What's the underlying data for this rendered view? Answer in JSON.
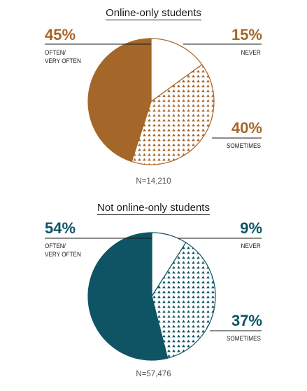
{
  "colors": {
    "top": "#a5662a",
    "bottom": "#0e5465",
    "text": "#1a1a1a",
    "n": "#555555"
  },
  "chart_data": [
    {
      "type": "pie",
      "title": "Online-only students",
      "slices": [
        {
          "label": "NEVER",
          "value": 15,
          "display": "15%",
          "fill": "white"
        },
        {
          "label": "SOMETIMES",
          "value": 40,
          "display": "40%",
          "fill": "pattern"
        },
        {
          "label_lines": [
            "OFTEN/",
            "VERY OFTEN"
          ],
          "value": 45,
          "display": "45%",
          "fill": "solid"
        }
      ],
      "n_label": "N=14,210"
    },
    {
      "type": "pie",
      "title": "Not online-only students",
      "slices": [
        {
          "label": "NEVER",
          "value": 9,
          "display": "9%",
          "fill": "white"
        },
        {
          "label": "SOMETIMES",
          "value": 37,
          "display": "37%",
          "fill": "pattern"
        },
        {
          "label_lines": [
            "OFTEN/",
            "VERY OFTEN"
          ],
          "value": 54,
          "display": "54%",
          "fill": "solid"
        }
      ],
      "n_label": "N=57,476"
    }
  ]
}
